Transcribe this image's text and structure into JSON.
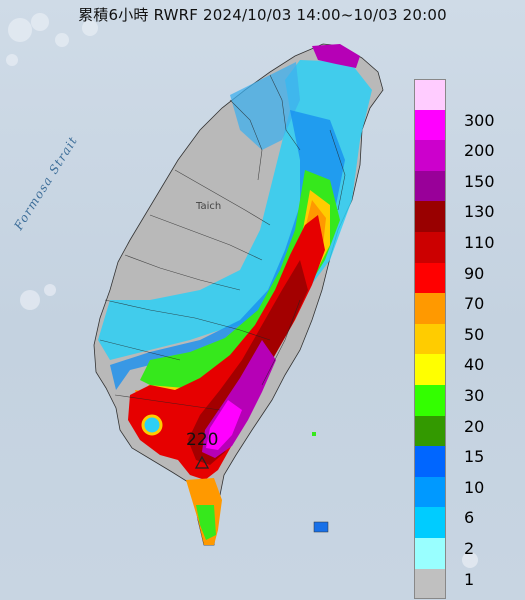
{
  "title": "累積6小時 RWRF 2024/10/03 14:00~10/03 20:00",
  "map_labels": {
    "strait": "Formosa Strait",
    "city": "Taich",
    "max_value": "220"
  },
  "legend": [
    {
      "label": "300",
      "color": "#ffccff"
    },
    {
      "label": "200",
      "color": "#ff00ff"
    },
    {
      "label": "150",
      "color": "#cc00cc"
    },
    {
      "label": "130",
      "color": "#990099"
    },
    {
      "label": "110",
      "color": "#990000"
    },
    {
      "label": "90",
      "color": "#cc0000"
    },
    {
      "label": "70",
      "color": "#ff0000"
    },
    {
      "label": "50",
      "color": "#ff9900"
    },
    {
      "label": "40",
      "color": "#ffcc00"
    },
    {
      "label": "30",
      "color": "#ffff00"
    },
    {
      "label": "20",
      "color": "#33ff00"
    },
    {
      "label": "15",
      "color": "#339900"
    },
    {
      "label": "10",
      "color": "#0066ff"
    },
    {
      "label": "6",
      "color": "#0099ff"
    },
    {
      "label": "2",
      "color": "#00ccff"
    },
    {
      "label": "1",
      "color": "#99ffff"
    },
    {
      "label": "",
      "color": "#c0c0c0"
    }
  ]
}
